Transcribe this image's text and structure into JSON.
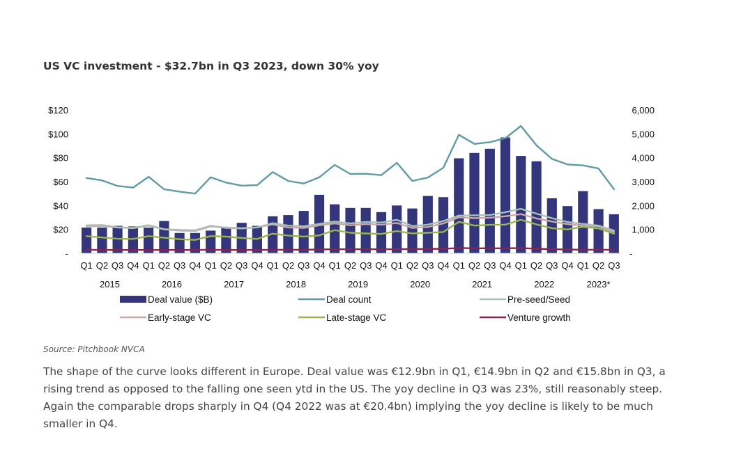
{
  "title": "US VC investment - $32.7bn in Q3 2023, down 30% yoy",
  "source": "Source: Pitchbook NVCA",
  "paragraph": "The shape of the curve looks different in Europe.  Deal value was €12.9bn in Q1, €14.9bn in Q2 and €15.8bn in Q3, a rising trend as opposed to the falling one seen ytd in the US.  The yoy decline in Q3 was 23%, still reasonably steep.  Again the comparable drops sharply in Q4 (Q4 2022 was at €20.4bn) implying the yoy decline is likely to be much smaller in Q4.",
  "chart_data": {
    "type": "bar",
    "categories": [
      "Q1",
      "Q2",
      "Q3",
      "Q4",
      "Q1",
      "Q2",
      "Q3",
      "Q4",
      "Q1",
      "Q2",
      "Q3",
      "Q4",
      "Q1",
      "Q2",
      "Q3",
      "Q4",
      "Q1",
      "Q2",
      "Q3",
      "Q4",
      "Q1",
      "Q2",
      "Q3",
      "Q4",
      "Q1",
      "Q2",
      "Q3",
      "Q4",
      "Q1",
      "Q2",
      "Q3",
      "Q4",
      "Q1",
      "Q2",
      "Q3"
    ],
    "years": [
      "2015",
      "2016",
      "2017",
      "2018",
      "2019",
      "2020",
      "2021",
      "2022",
      "2023*"
    ],
    "left_axis": {
      "ylim": [
        0,
        120
      ],
      "ticks": [
        "-",
        "$20",
        "$40",
        "$60",
        "$80",
        "$100",
        "$120"
      ]
    },
    "right_axis": {
      "ylim": [
        0,
        6000
      ],
      "ticks": [
        "-",
        "1,000",
        "2,000",
        "3,000",
        "4,000",
        "5,000",
        "6,000"
      ]
    },
    "series": [
      {
        "name": "Deal value ($B)",
        "type": "bar",
        "axis": "left",
        "color": "#33367a",
        "values": [
          21.5,
          21.5,
          23,
          22.5,
          21.5,
          27,
          17,
          17,
          19,
          22,
          25.5,
          23,
          31,
          32,
          35.5,
          49,
          41,
          38,
          38,
          34.5,
          40,
          37.5,
          48,
          47,
          79.5,
          84,
          87.5,
          97,
          81.5,
          77,
          46,
          39.5,
          52,
          37,
          32.7
        ]
      },
      {
        "name": "Deal count",
        "type": "line",
        "axis": "right",
        "color": "#5f9aa6",
        "values": [
          3150,
          3050,
          2820,
          2750,
          3200,
          2680,
          2580,
          2500,
          3180,
          2960,
          2830,
          2850,
          3400,
          3030,
          2920,
          3180,
          3700,
          3320,
          3330,
          3270,
          3790,
          3030,
          3170,
          3580,
          4960,
          4580,
          4650,
          4820,
          5330,
          4520,
          3950,
          3720,
          3680,
          3550,
          2680
        ]
      },
      {
        "name": "Pre-seed/Seed",
        "type": "line",
        "axis": "right",
        "color": "#a9c0bb",
        "values": [
          1120,
          1140,
          1080,
          1050,
          1160,
          1000,
          950,
          930,
          1120,
          1080,
          1050,
          1080,
          1260,
          1160,
          1130,
          1230,
          1330,
          1250,
          1310,
          1290,
          1400,
          1140,
          1200,
          1350,
          1580,
          1590,
          1600,
          1720,
          1860,
          1660,
          1470,
          1310,
          1230,
          1160,
          950
        ]
      },
      {
        "name": "Early-stage VC",
        "type": "line",
        "axis": "right",
        "color": "#c9a8a9",
        "values": [
          1170,
          1180,
          1090,
          1060,
          1180,
          1010,
          980,
          960,
          1150,
          1060,
          1040,
          1090,
          1210,
          1080,
          1060,
          1170,
          1250,
          1170,
          1220,
          1200,
          1270,
          1060,
          1100,
          1250,
          1510,
          1470,
          1490,
          1550,
          1640,
          1460,
          1330,
          1220,
          1150,
          1130,
          890
        ]
      },
      {
        "name": "Late-stage VC",
        "type": "line",
        "axis": "right",
        "color": "#98b54e",
        "values": [
          720,
          660,
          610,
          600,
          720,
          650,
          590,
          560,
          720,
          700,
          640,
          600,
          820,
          740,
          700,
          750,
          970,
          860,
          830,
          810,
          930,
          830,
          860,
          890,
          1320,
          1160,
          1190,
          1200,
          1400,
          1210,
          1050,
          1000,
          1110,
          1040,
          820
        ]
      },
      {
        "name": "Venture growth",
        "type": "line",
        "axis": "right",
        "color": "#8a2350",
        "values": [
          150,
          140,
          140,
          140,
          140,
          140,
          140,
          140,
          150,
          140,
          140,
          140,
          150,
          150,
          150,
          160,
          170,
          170,
          170,
          170,
          170,
          180,
          180,
          190,
          220,
          210,
          210,
          210,
          220,
          190,
          170,
          160,
          150,
          150,
          150
        ]
      }
    ]
  }
}
